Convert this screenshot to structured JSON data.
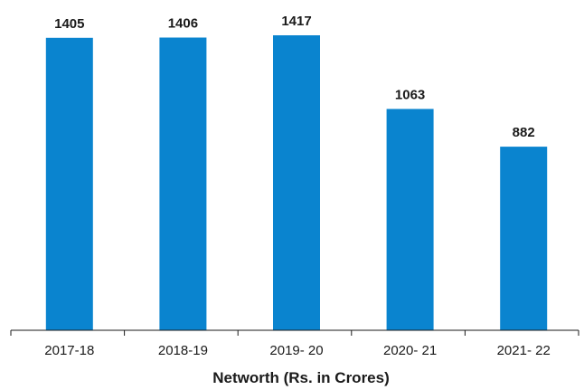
{
  "chart_data": {
    "type": "bar",
    "title": "",
    "xlabel": "Networth (Rs. in Crores)",
    "ylabel": "",
    "categories": [
      "2017-18",
      "2018-19",
      "2019- 20",
      "2020- 21",
      "2021- 22"
    ],
    "values": [
      1405,
      1406,
      1417,
      1063,
      882
    ],
    "ylim": [
      0,
      1417
    ],
    "grid": false,
    "legend": "none",
    "bar_color": "#0a84cf",
    "axis_color": "#1a1a1a"
  }
}
